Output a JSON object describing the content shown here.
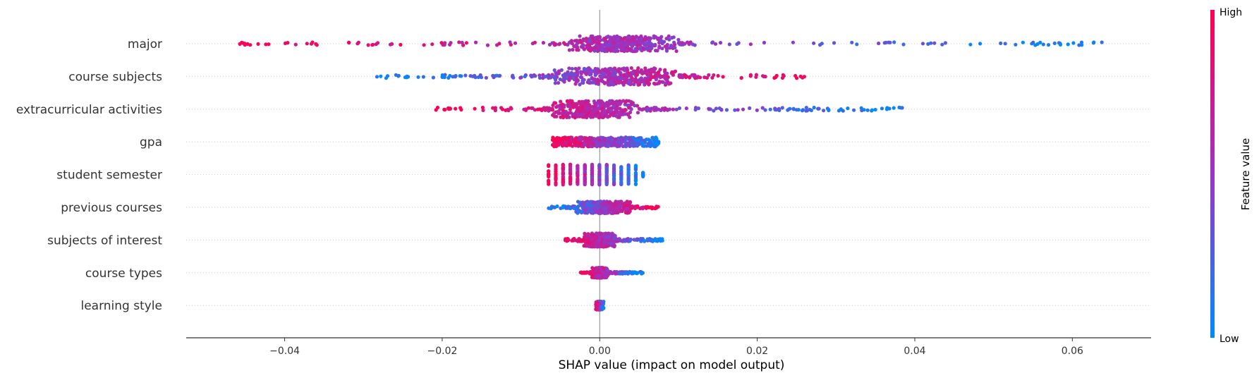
{
  "chart_data": {
    "type": "scatter",
    "subtype": "shap-beeswarm",
    "title": "",
    "xlabel": "SHAP value (impact on model output)",
    "ylabel": "",
    "xlim": [
      -0.0525,
      0.07
    ],
    "xticks": [
      -0.04,
      -0.02,
      0.0,
      0.02,
      0.04,
      0.06
    ],
    "xtick_labels": [
      "−0.04",
      "−0.02",
      "0.00",
      "0.02",
      "0.04",
      "0.06"
    ],
    "grid": "row guide lines (dotted), vertical zero line",
    "colors": {
      "low": "#008bfb",
      "high": "#ff0052",
      "mid": "#9b34c4"
    },
    "colorbar": {
      "title": "Feature value",
      "high_label": "High",
      "low_label": "Low"
    },
    "features": [
      {
        "name": "major",
        "min": -0.047,
        "max": 0.0645,
        "spread": 0.22,
        "direction": "high_left",
        "core": [
          -0.004,
          0.01
        ],
        "thick": 0.9
      },
      {
        "name": "course subjects",
        "min": -0.0285,
        "max": 0.026,
        "spread": 0.2,
        "direction": "high_right",
        "core": [
          -0.006,
          0.01
        ],
        "thick": 1.0
      },
      {
        "name": "extracurricular activities",
        "min": -0.021,
        "max": 0.0385,
        "spread": 0.2,
        "direction": "high_left",
        "core": [
          -0.006,
          0.005
        ],
        "thick": 1.0
      },
      {
        "name": "gpa",
        "min": -0.006,
        "max": 0.0075,
        "spread": 0.12,
        "direction": "high_left",
        "core": [
          -0.006,
          0.0075
        ],
        "thick": 0.55
      },
      {
        "name": "student semester",
        "min": -0.0065,
        "max": 0.0055,
        "spread": 0.18,
        "direction": "high_left",
        "core": [
          -0.0065,
          0.0055
        ],
        "thick": 0.9
      },
      {
        "name": "previous courses",
        "min": -0.0065,
        "max": 0.0075,
        "spread": 0.15,
        "direction": "high_right",
        "core": [
          -0.003,
          0.004
        ],
        "thick": 0.7
      },
      {
        "name": "subjects of interest",
        "min": -0.0045,
        "max": 0.008,
        "spread": 0.2,
        "direction": "high_left",
        "core": [
          -0.002,
          0.002
        ],
        "thick": 0.8
      },
      {
        "name": "course types",
        "min": -0.0025,
        "max": 0.0055,
        "spread": 0.2,
        "direction": "high_left",
        "core": [
          -0.001,
          0.001
        ],
        "thick": 0.6
      },
      {
        "name": "learning style",
        "min": -0.0005,
        "max": 0.0005,
        "spread": 0.2,
        "direction": "high_left",
        "core": [
          -0.0005,
          0.0005
        ],
        "thick": 0.5
      }
    ]
  }
}
